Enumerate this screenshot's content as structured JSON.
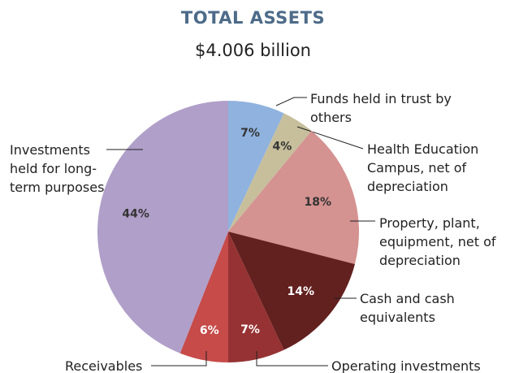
{
  "chart_data": {
    "type": "pie",
    "title": "TOTAL ASSETS",
    "subtitle": "$4.006 billion",
    "categories": [
      "Funds held in trust by others",
      "Health Education Campus, net of depreciation",
      "Property, plant, equipment, net of depreciation",
      "Cash and cash equivalents",
      "Operating investments",
      "Receivables",
      "Investments held for long-term purposes"
    ],
    "values": [
      7,
      4,
      18,
      14,
      7,
      6,
      44
    ],
    "value_labels": [
      "7%",
      "4%",
      "18%",
      "14%",
      "7%",
      "6%",
      "44%"
    ],
    "colors": [
      "#8fb2de",
      "#c7bf9c",
      "#d49291",
      "#62201f",
      "#963233",
      "#c64b49",
      "#b09fc9"
    ]
  }
}
